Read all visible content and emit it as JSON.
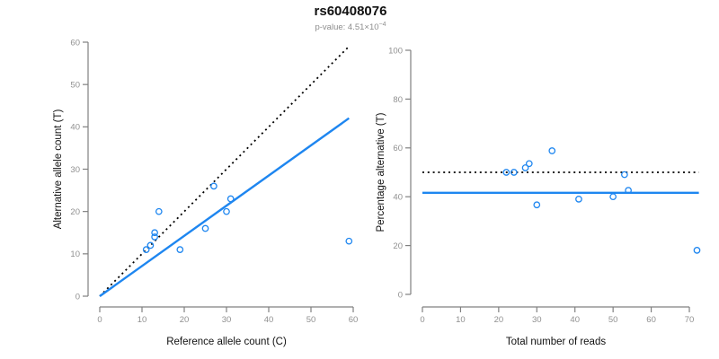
{
  "header": {
    "title": "rs60408076",
    "subtitle_main": "p-value: 4.51×10",
    "subtitle_sup": "−4"
  },
  "colors": {
    "accent_blue": "#1E86F0",
    "dotted_black": "#000000",
    "axis_gray": "#808080",
    "tick_label_gray": "#909090",
    "axis_label_black": "#111111"
  },
  "chart_data": [
    {
      "type": "scatter",
      "panel": "allele-counts",
      "xlabel": "Reference allele count (C)",
      "ylabel": "Alternative allele count (T)",
      "xlim": [
        0,
        60
      ],
      "ylim": [
        0,
        60
      ],
      "xticks": [
        0,
        10,
        20,
        30,
        40,
        50,
        60
      ],
      "yticks": [
        0,
        10,
        20,
        30,
        40,
        50,
        60
      ],
      "grid": false,
      "legend": "none",
      "points": [
        [
          14,
          20
        ],
        [
          13,
          15
        ],
        [
          13,
          14
        ],
        [
          12,
          12
        ],
        [
          11,
          11
        ],
        [
          19,
          11
        ],
        [
          25,
          16
        ],
        [
          27,
          26
        ],
        [
          30,
          20
        ],
        [
          31,
          23
        ],
        [
          59,
          13
        ]
      ],
      "lines": [
        {
          "name": "identity-line",
          "style": "dotted",
          "color": "#000000",
          "x1": 0,
          "y1": 0,
          "x2": 59,
          "y2": 59
        },
        {
          "name": "fit-line",
          "style": "solid",
          "color": "#1E86F0",
          "x1": 0,
          "y1": 0,
          "x2": 59,
          "y2": 42.04
        }
      ]
    },
    {
      "type": "scatter",
      "panel": "percentage-alternative",
      "xlabel": "Total number of reads",
      "ylabel": "Percentage alternative (T)",
      "xlim": [
        0,
        72.5
      ],
      "ylim": [
        0,
        100
      ],
      "xticks": [
        0,
        10,
        20,
        30,
        40,
        50,
        60,
        70
      ],
      "yticks": [
        0,
        20,
        40,
        60,
        80,
        100
      ],
      "grid": false,
      "legend": "none",
      "points": [
        [
          34,
          58.82
        ],
        [
          28,
          53.57
        ],
        [
          27,
          51.85
        ],
        [
          24,
          50
        ],
        [
          22,
          50
        ],
        [
          53,
          49.06
        ],
        [
          54,
          42.59
        ],
        [
          50,
          40
        ],
        [
          41,
          39.02
        ],
        [
          30,
          36.67
        ],
        [
          72,
          18.06
        ]
      ],
      "lines": [
        {
          "name": "expected-50pct-line",
          "style": "dotted",
          "color": "#000000",
          "x1": 0,
          "y1": 50,
          "x2": 72.5,
          "y2": 50
        },
        {
          "name": "observed-ratio-line",
          "style": "solid",
          "color": "#1E86F0",
          "x1": 0,
          "y1": 41.61,
          "x2": 72.5,
          "y2": 41.61
        }
      ]
    }
  ]
}
